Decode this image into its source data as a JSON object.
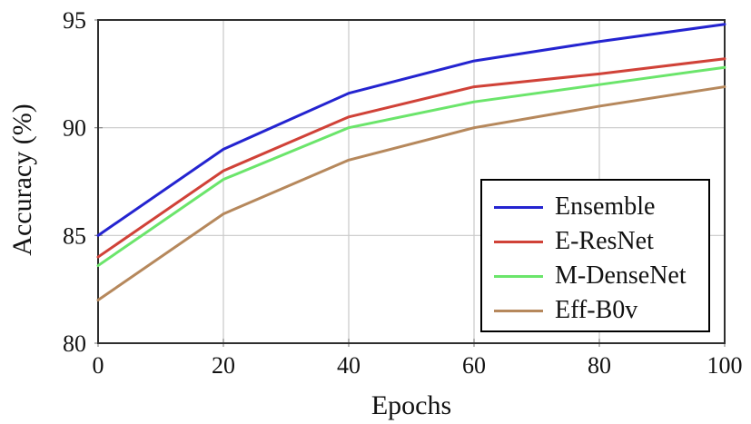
{
  "figure": {
    "background": "#ffffff",
    "axis_color": "#2f2f2f",
    "grid_color": "#c9c9c9",
    "tick_color": "#888888",
    "text_color": "#121212"
  },
  "chart_data": {
    "type": "line",
    "title": "",
    "xlabel": "Epochs",
    "ylabel": "Accuracy (%)",
    "xlim": [
      0,
      100
    ],
    "ylim": [
      80,
      95
    ],
    "xticks": [
      0,
      20,
      40,
      60,
      80,
      100
    ],
    "yticks": [
      80,
      85,
      90,
      95
    ],
    "grid": true,
    "legend_position": "lower right",
    "x": [
      0,
      20,
      40,
      60,
      80,
      100
    ],
    "series": [
      {
        "name": "Ensemble",
        "color": "#2424d0",
        "values": [
          85.0,
          89.0,
          91.6,
          93.1,
          94.0,
          94.8
        ]
      },
      {
        "name": "E-ResNet",
        "color": "#d04238",
        "values": [
          84.0,
          88.0,
          90.5,
          91.9,
          92.5,
          93.2
        ]
      },
      {
        "name": "M-DenseNet",
        "color": "#6be56b",
        "values": [
          83.6,
          87.6,
          90.0,
          91.2,
          92.0,
          92.8
        ]
      },
      {
        "name": "Eff-B0v",
        "color": "#b6885c",
        "values": [
          82.0,
          86.0,
          88.5,
          90.0,
          91.0,
          91.9
        ]
      }
    ]
  }
}
